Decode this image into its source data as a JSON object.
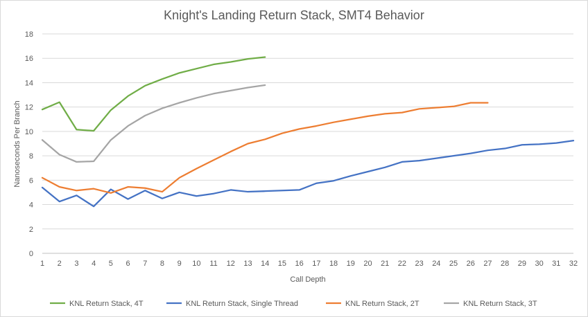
{
  "chart_data": {
    "type": "line",
    "title": "Knight's Landing Return Stack, SMT4 Behavior",
    "xlabel": "Call Depth",
    "ylabel": "Nanoseconds Per Branch",
    "ylim": [
      0,
      18
    ],
    "yticks": [
      0,
      2,
      4,
      6,
      8,
      10,
      12,
      14,
      16,
      18
    ],
    "xlim": [
      1,
      32
    ],
    "xticks": [
      1,
      2,
      3,
      4,
      5,
      6,
      7,
      8,
      9,
      10,
      11,
      12,
      13,
      14,
      15,
      16,
      17,
      18,
      19,
      20,
      21,
      22,
      23,
      24,
      25,
      26,
      27,
      28,
      29,
      30,
      31,
      32
    ],
    "grid": "horizontal",
    "legend_position": "bottom",
    "series": [
      {
        "name": "KNL Return Stack, 4T",
        "color": "#70ad47",
        "x": [
          1,
          2,
          3,
          4,
          5,
          6,
          7,
          8,
          9,
          10,
          11,
          12,
          13,
          14
        ],
        "values": [
          11.8,
          12.4,
          10.15,
          10.05,
          11.75,
          12.9,
          13.75,
          14.3,
          14.8,
          15.15,
          15.5,
          15.7,
          15.95,
          16.1
        ]
      },
      {
        "name": "KNL Return Stack, Single Thread",
        "color": "#4472c4",
        "x": [
          1,
          2,
          3,
          4,
          5,
          6,
          7,
          8,
          9,
          10,
          11,
          12,
          13,
          14,
          15,
          16,
          17,
          18,
          19,
          20,
          21,
          22,
          23,
          24,
          25,
          26,
          27,
          28,
          29,
          30,
          31,
          32
        ],
        "values": [
          5.4,
          4.25,
          4.75,
          3.85,
          5.25,
          4.45,
          5.15,
          4.5,
          5.0,
          4.7,
          4.9,
          5.2,
          5.05,
          5.1,
          5.15,
          5.2,
          5.75,
          5.95,
          6.35,
          6.7,
          7.05,
          7.5,
          7.6,
          7.8,
          8.0,
          8.2,
          8.45,
          8.6,
          8.9,
          8.95,
          9.05,
          9.25
        ]
      },
      {
        "name": "KNL Return Stack, 2T",
        "color": "#ed7d31",
        "x": [
          1,
          2,
          3,
          4,
          5,
          6,
          7,
          8,
          9,
          10,
          11,
          12,
          13,
          14,
          15,
          16,
          17,
          18,
          19,
          20,
          21,
          22,
          23,
          24,
          25,
          26,
          27
        ],
        "values": [
          6.2,
          5.45,
          5.15,
          5.3,
          4.95,
          5.45,
          5.35,
          5.05,
          6.2,
          6.95,
          7.65,
          8.35,
          9.0,
          9.35,
          9.85,
          10.2,
          10.45,
          10.75,
          11.0,
          11.25,
          11.45,
          11.55,
          11.85,
          11.95,
          12.05,
          12.35,
          12.35
        ]
      },
      {
        "name": "KNL Return Stack, 3T",
        "color": "#a5a5a5",
        "x": [
          1,
          2,
          3,
          4,
          5,
          6,
          7,
          8,
          9,
          10,
          11,
          12,
          13,
          14
        ],
        "values": [
          9.3,
          8.1,
          7.5,
          7.55,
          9.3,
          10.45,
          11.3,
          11.9,
          12.35,
          12.75,
          13.1,
          13.35,
          13.6,
          13.8
        ]
      }
    ]
  }
}
